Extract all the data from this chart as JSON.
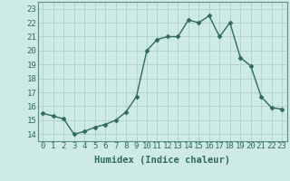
{
  "x": [
    0,
    1,
    2,
    3,
    4,
    5,
    6,
    7,
    8,
    9,
    10,
    11,
    12,
    13,
    14,
    15,
    16,
    17,
    18,
    19,
    20,
    21,
    22,
    23
  ],
  "y": [
    15.5,
    15.3,
    15.1,
    14.0,
    14.2,
    14.5,
    14.7,
    15.0,
    15.6,
    16.7,
    20.0,
    20.8,
    21.0,
    21.0,
    22.2,
    22.0,
    22.5,
    21.0,
    22.0,
    19.5,
    18.9,
    16.7,
    15.9,
    15.8
  ],
  "xlabel": "Humidex (Indice chaleur)",
  "xlim": [
    -0.5,
    23.5
  ],
  "ylim": [
    13.5,
    23.5
  ],
  "yticks": [
    14,
    15,
    16,
    17,
    18,
    19,
    20,
    21,
    22,
    23
  ],
  "xticks": [
    0,
    1,
    2,
    3,
    4,
    5,
    6,
    7,
    8,
    9,
    10,
    11,
    12,
    13,
    14,
    15,
    16,
    17,
    18,
    19,
    20,
    21,
    22,
    23
  ],
  "line_color": "#2e6b5e",
  "marker": "D",
  "marker_size": 2.5,
  "bg_color": "#ceeae4",
  "grid_color": "#b0cfc9",
  "tick_label_fontsize": 6.5,
  "xlabel_fontsize": 7.5,
  "line_width": 1.0,
  "spine_color": "#5a9080"
}
